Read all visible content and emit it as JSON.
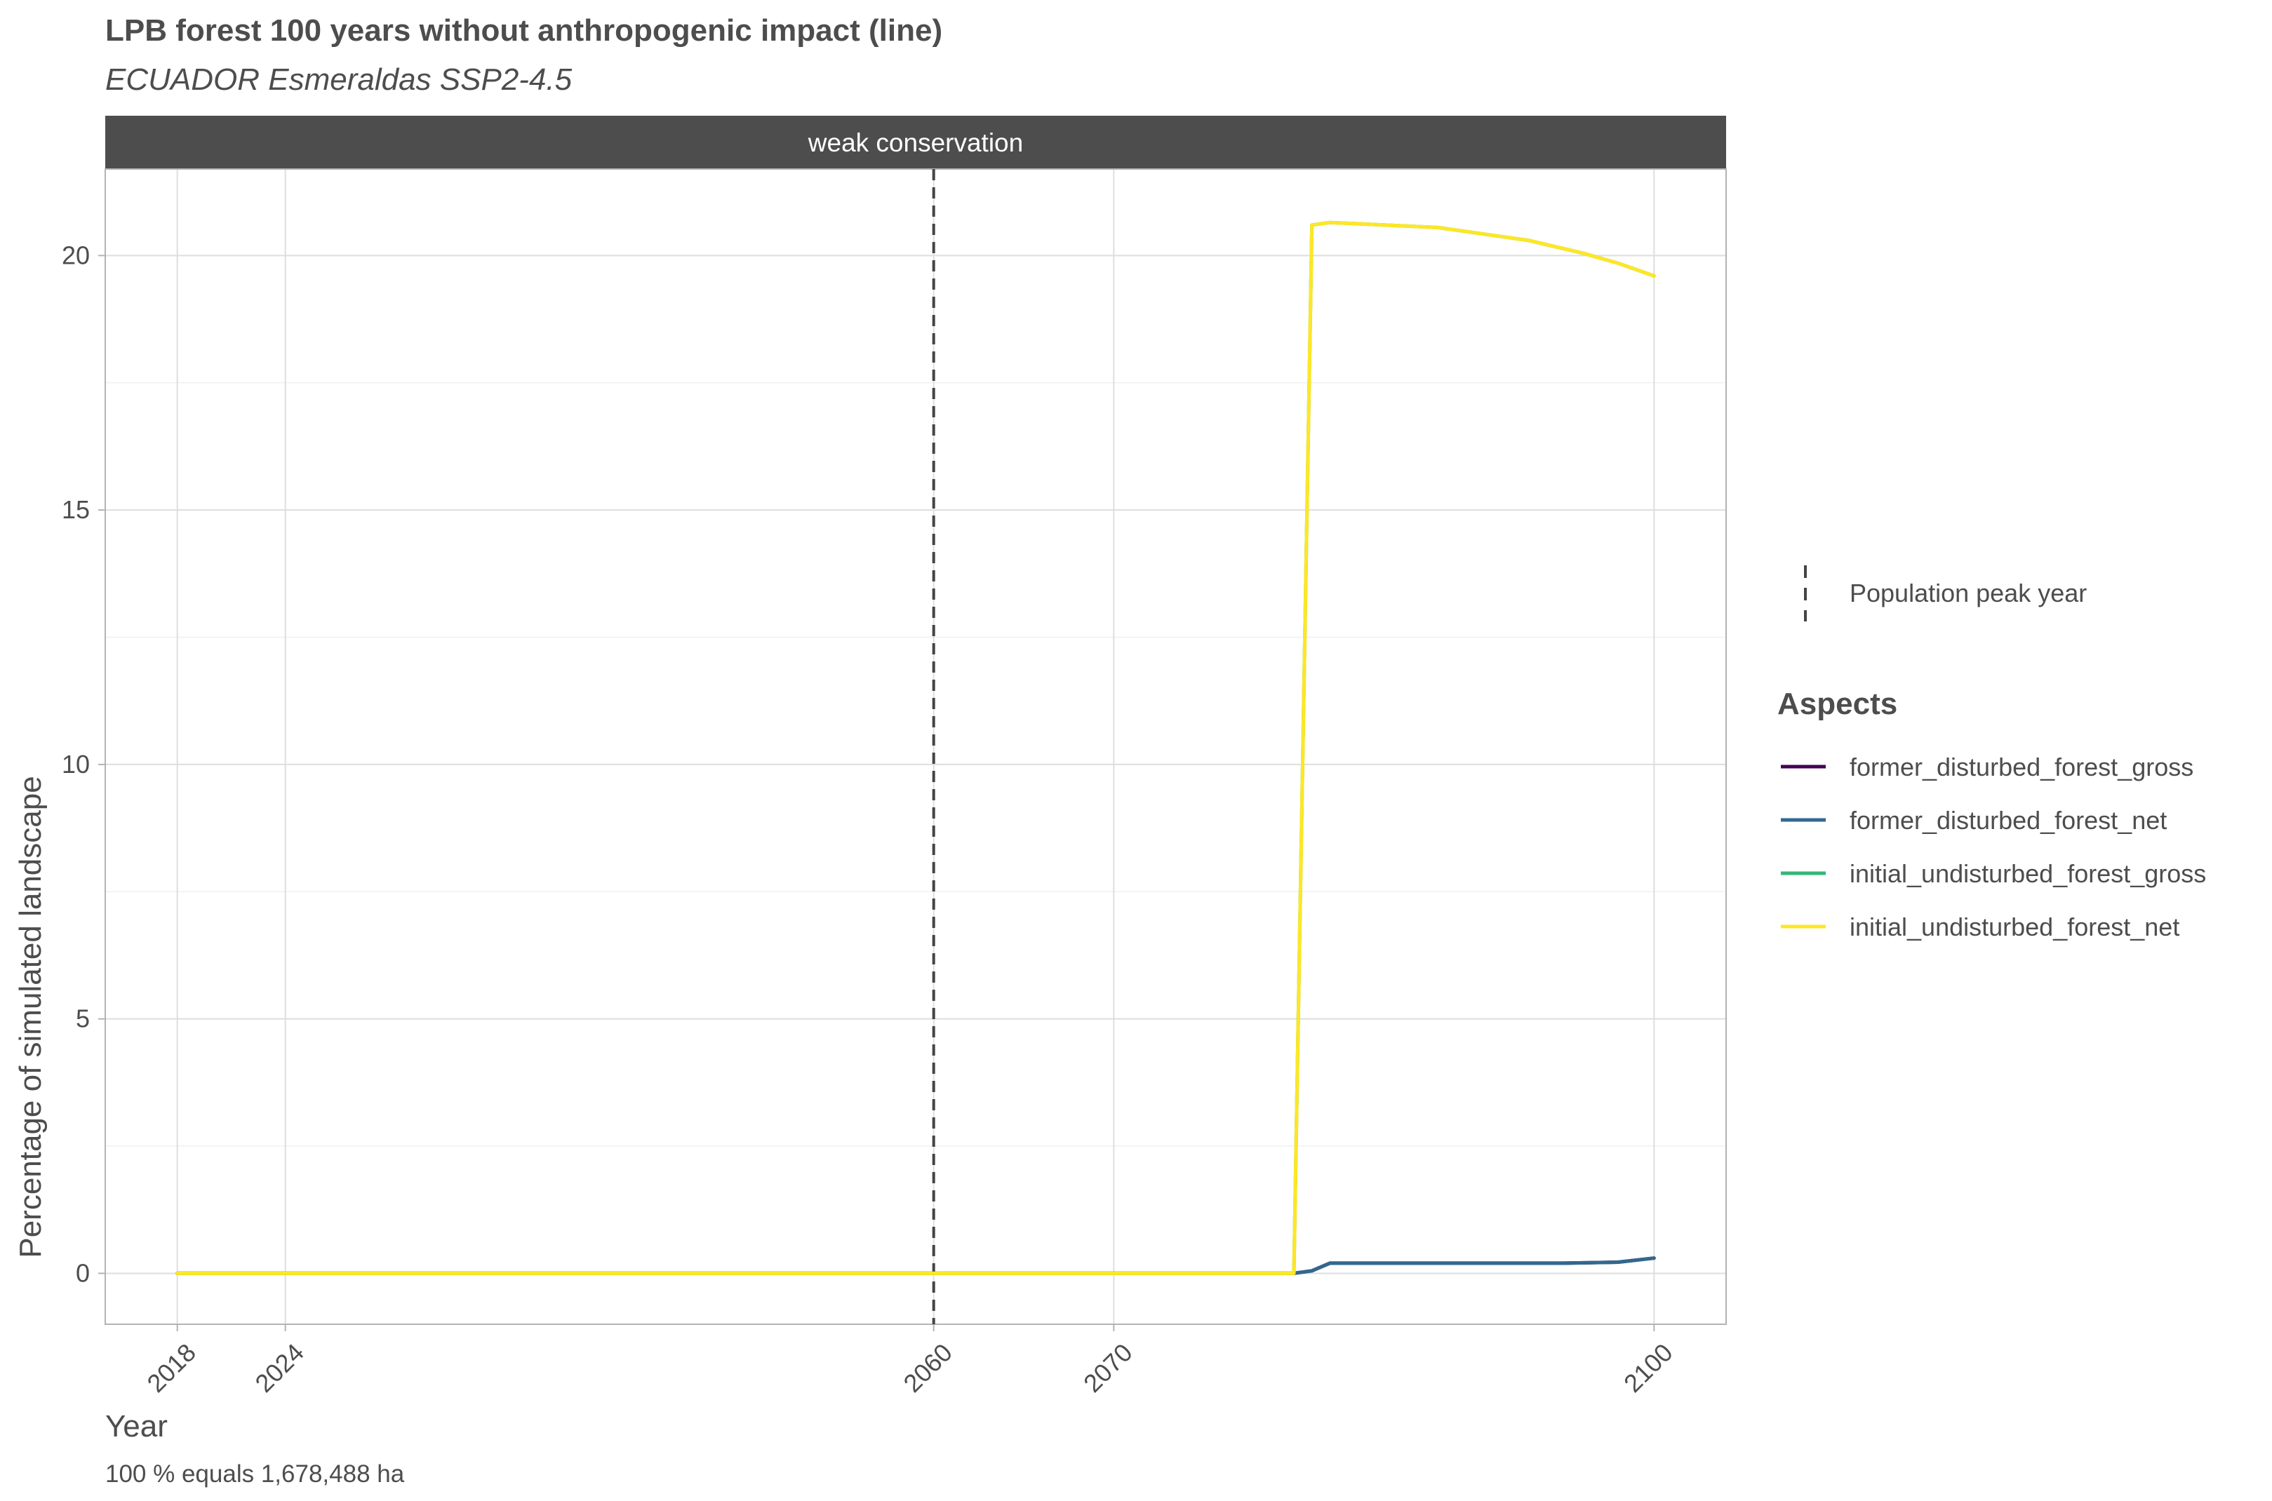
{
  "chart_data": {
    "type": "line",
    "title": "LPB forest 100 years without anthropogenic impact (line)",
    "subtitle": "ECUADOR Esmeraldas SSP2-4.5",
    "facet_label": "weak conservation",
    "xlabel": "Year",
    "ylabel": "Percentage of simulated landscape",
    "caption": "100 % equals 1,678,488 ha",
    "xlim": [
      2014,
      2104
    ],
    "ylim": [
      -1,
      21.7
    ],
    "x_ticks": [
      2018,
      2024,
      2060,
      2070,
      2100
    ],
    "x_tick_labels": [
      "2018",
      "2024",
      "2060",
      "2070",
      "2100"
    ],
    "y_ticks": [
      0,
      5,
      10,
      15,
      20
    ],
    "y_tick_labels": [
      "0",
      "5",
      "10",
      "15",
      "20"
    ],
    "grid": true,
    "vline": {
      "x": 2060,
      "label": "Population peak year",
      "style": "dashed",
      "color": "#444444"
    },
    "legend_title": "Aspects",
    "legend_position": "right",
    "series": [
      {
        "name": "former_disturbed_forest_gross",
        "color": "#440154",
        "x": [
          2018,
          2024,
          2060,
          2070,
          2080,
          2081,
          2082,
          2085,
          2090,
          2095,
          2098,
          2100
        ],
        "y": [
          0,
          0,
          0,
          0,
          0,
          0.05,
          0.2,
          0.2,
          0.2,
          0.2,
          0.22,
          0.3
        ]
      },
      {
        "name": "former_disturbed_forest_net",
        "color": "#31688e",
        "x": [
          2018,
          2024,
          2060,
          2070,
          2080,
          2081,
          2082,
          2085,
          2090,
          2095,
          2098,
          2100
        ],
        "y": [
          0,
          0,
          0,
          0,
          0,
          0.05,
          0.2,
          0.2,
          0.2,
          0.2,
          0.22,
          0.3
        ]
      },
      {
        "name": "initial_undisturbed_forest_gross",
        "color": "#35b779",
        "x": [
          2018,
          2024,
          2060,
          2070,
          2080,
          2081,
          2082,
          2085,
          2088,
          2090,
          2093,
          2096,
          2098,
          2100
        ],
        "y": [
          0,
          0,
          0,
          0,
          0,
          20.6,
          20.65,
          20.6,
          20.55,
          20.45,
          20.3,
          20.05,
          19.85,
          19.6
        ]
      },
      {
        "name": "initial_undisturbed_forest_net",
        "color": "#fde725",
        "x": [
          2018,
          2024,
          2060,
          2070,
          2080,
          2081,
          2082,
          2085,
          2088,
          2090,
          2093,
          2096,
          2098,
          2100
        ],
        "y": [
          0,
          0,
          0,
          0,
          0,
          20.6,
          20.65,
          20.6,
          20.55,
          20.45,
          20.3,
          20.05,
          19.85,
          19.6
        ]
      }
    ]
  }
}
